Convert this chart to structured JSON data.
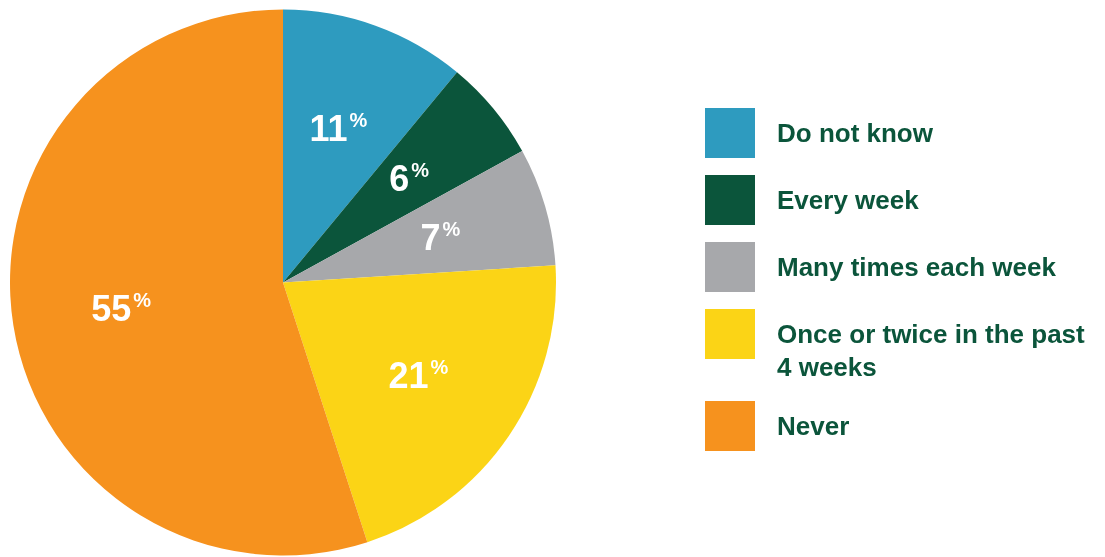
{
  "chart_data": {
    "type": "pie",
    "categories": [
      "Do not know",
      "Every week",
      "Many times each week",
      "Once or twice in the past 4 weeks",
      "Never"
    ],
    "values": [
      11,
      6,
      7,
      21,
      55
    ],
    "colors": [
      "#2e9bbf",
      "#0b553b",
      "#a7a8ab",
      "#fbd416",
      "#f6921e"
    ],
    "value_labels": [
      "11%",
      "6%",
      "7%",
      "21%",
      "55%"
    ],
    "legend": "right"
  }
}
